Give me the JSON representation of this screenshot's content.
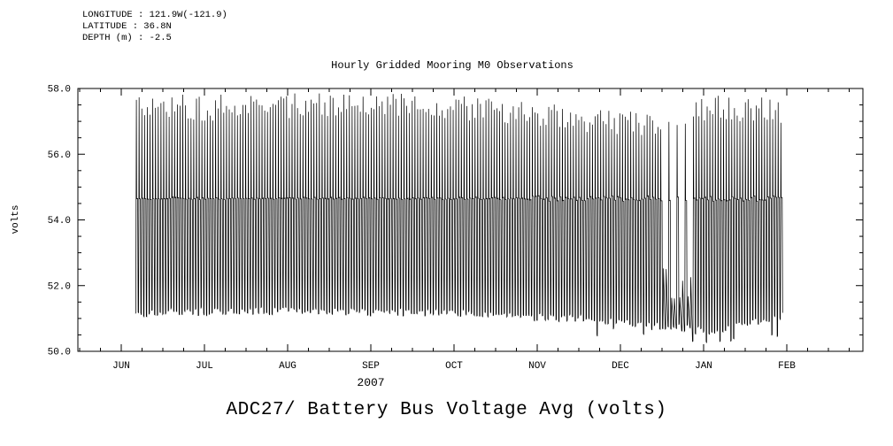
{
  "meta": {
    "longitude_label": "LONGITUDE : 121.9W(-121.9)",
    "latitude_label": "LATITUDE : 36.8N",
    "depth_label": "DEPTH (m) : -2.5"
  },
  "titles": {
    "plot_title": "Hourly Gridded Mooring M0 Observations",
    "caption": "ADC27/ Battery Bus Voltage Avg (volts)",
    "year_label": "2007",
    "y_axis_label": "volts"
  },
  "chart_data": {
    "type": "line",
    "title": "Hourly Gridded Mooring M0 Observations",
    "xlabel": "2007",
    "ylabel": "volts",
    "ylim": [
      50.0,
      58.0
    ],
    "ytick_values": [
      50.0,
      52.0,
      54.0,
      56.0,
      58.0
    ],
    "ytick_labels": [
      "50.0",
      "52.0",
      "54.0",
      "56.0",
      "58.0"
    ],
    "ytick_minor_step": 0.5,
    "xtick_labels": [
      "JUN",
      "JUL",
      "AUG",
      "SEP",
      "OCT",
      "NOV",
      "DEC",
      "JAN",
      "FEB"
    ],
    "xtick_minor_step_months": 0.25,
    "grid": false,
    "legend": false,
    "line_color": "#000000",
    "observed_extremes": {
      "min_volts": 50.3,
      "max_volts": 57.8
    },
    "series": [
      {
        "name": "ADC27/ Battery Bus Voltage Avg",
        "units": "volts",
        "pattern": "dense daily charge/discharge cycles: overnight low ~51.2 V, charge peak ~57.5 V, float plateau band at ~54.65 V",
        "cycle_period_days": 1,
        "float_plateau_volts": 54.65,
        "data_start": "mid-JUN 2007",
        "data_end": "late JAN 2008",
        "envelope_keyframes": [
          {
            "month_offset": 0.17,
            "daily_low": 51.15,
            "daily_peak": 57.6
          },
          {
            "month_offset": 1.0,
            "daily_low": 51.2,
            "daily_peak": 57.4
          },
          {
            "month_offset": 2.0,
            "daily_low": 51.25,
            "daily_peak": 57.5
          },
          {
            "month_offset": 3.0,
            "daily_low": 51.2,
            "daily_peak": 57.6
          },
          {
            "month_offset": 4.0,
            "daily_low": 51.15,
            "daily_peak": 57.4
          },
          {
            "month_offset": 5.0,
            "daily_low": 51.05,
            "daily_peak": 57.2
          },
          {
            "month_offset": 5.8,
            "daily_low": 50.95,
            "daily_peak": 57.0
          },
          {
            "month_offset": 6.5,
            "daily_low": 50.75,
            "daily_peak": 56.9
          },
          {
            "month_offset": 7.1,
            "daily_low": 50.6,
            "daily_peak": 57.4
          },
          {
            "month_offset": 7.95,
            "daily_low": 51.1,
            "daily_peak": 57.3
          }
        ],
        "sparse_regions": [
          {
            "from": 6.5,
            "to": 6.85,
            "keep_every": 3
          }
        ],
        "deep_dip_min_volts": 50.3,
        "seed": 20071
      }
    ]
  }
}
